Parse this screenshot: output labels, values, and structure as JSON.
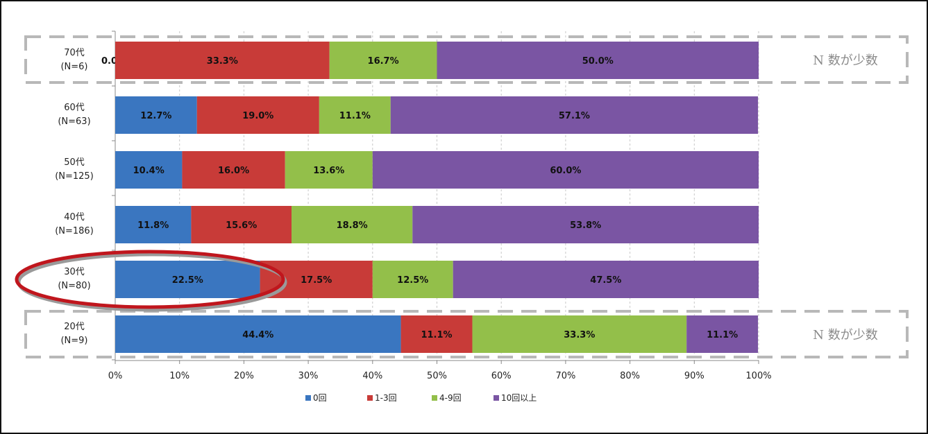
{
  "chart_data": {
    "type": "bar",
    "orientation": "horizontal",
    "stacked": true,
    "categories": [
      {
        "name": "70代",
        "n": "(N=6)"
      },
      {
        "name": "60代",
        "n": "(N=63)"
      },
      {
        "name": "50代",
        "n": "(N=125)"
      },
      {
        "name": "40代",
        "n": "(N=186)"
      },
      {
        "name": "30代",
        "n": "(N=80)"
      },
      {
        "name": "20代",
        "n": "(N=9)"
      }
    ],
    "series": [
      {
        "name": "0回",
        "color": "#3a76c0",
        "values": [
          0.0,
          12.7,
          10.4,
          11.8,
          22.5,
          44.4
        ],
        "labels": [
          "0.0%",
          "12.7%",
          "10.4%",
          "11.8%",
          "22.5%",
          "44.4%"
        ]
      },
      {
        "name": "1-3回",
        "color": "#c83b38",
        "values": [
          33.3,
          19.0,
          16.0,
          15.6,
          17.5,
          11.1
        ],
        "labels": [
          "33.3%",
          "19.0%",
          "16.0%",
          "15.6%",
          "17.5%",
          "11.1%"
        ]
      },
      {
        "name": "4-9回",
        "color": "#93bf4a",
        "values": [
          16.7,
          11.1,
          13.6,
          18.8,
          12.5,
          33.3
        ],
        "labels": [
          "16.7%",
          "11.1%",
          "13.6%",
          "18.8%",
          "12.5%",
          "33.3%"
        ]
      },
      {
        "name": "10回以上",
        "color": "#7a55a3",
        "values": [
          50.0,
          57.1,
          60.0,
          53.8,
          47.5,
          11.1
        ],
        "labels": [
          "50.0%",
          "57.1%",
          "60.0%",
          "53.8%",
          "47.5%",
          "11.1%"
        ]
      }
    ],
    "xlim": [
      0,
      100
    ],
    "x_ticks": [
      "0%",
      "10%",
      "20%",
      "30%",
      "40%",
      "50%",
      "60%",
      "70%",
      "80%",
      "90%",
      "100%"
    ],
    "grid": true,
    "legend_position": "bottom",
    "annotations": [
      {
        "text": "N 数が少数",
        "category": "70代"
      },
      {
        "text": "N 数が少数",
        "category": "20代"
      }
    ],
    "highlighted_category": "30代"
  }
}
